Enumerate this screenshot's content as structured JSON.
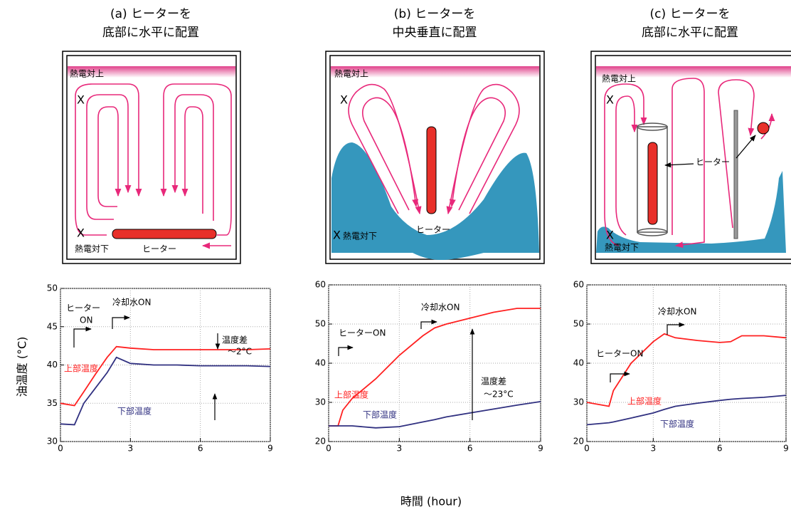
{
  "panels": [
    {
      "title": [
        "(a) ヒーターを",
        "底部に水平に配置"
      ],
      "top_label": "熱電対上",
      "bottom_label": "熱電対下",
      "heater_label": "ヒーター",
      "marker": "X"
    },
    {
      "title": [
        "(b) ヒーターを",
        "中央垂直に配置"
      ],
      "top_label": "熱電対上",
      "bottom_label": "熱電対下",
      "heater_label": "ヒーター",
      "marker": "X"
    },
    {
      "title": [
        "(c) ヒーターを",
        "底部に水平に配置"
      ],
      "top_label": "熱電対上",
      "bottom_label": "熱電対下",
      "heater_label": "ヒーター",
      "marker": "X"
    }
  ],
  "y_label": "油温度 (°C)",
  "x_label": "時間 (hour)",
  "chart_data": [
    {
      "type": "line",
      "x": [
        0,
        0.6,
        1,
        1.5,
        2,
        2.4,
        3,
        4,
        5,
        6,
        7,
        8,
        9
      ],
      "xlim": [
        0,
        9
      ],
      "xticks": [
        0,
        3,
        6,
        9
      ],
      "ylim": [
        30,
        50
      ],
      "yticks": [
        30,
        35,
        40,
        45,
        50
      ],
      "grid": true,
      "series": [
        {
          "name": "上部温度",
          "color": "#ff2020",
          "values": [
            35,
            34.7,
            36.5,
            38.8,
            41,
            42.4,
            42.2,
            42,
            42,
            42,
            42,
            42,
            42.1
          ]
        },
        {
          "name": "下部温度",
          "color": "#303080",
          "values": [
            32.3,
            32.2,
            35,
            37,
            39,
            41,
            40.2,
            40,
            40,
            39.9,
            39.9,
            39.9,
            39.8
          ]
        }
      ],
      "annotations": [
        "ヒーター",
        "ON",
        "冷却水ON",
        "温度差",
        "～2°C"
      ]
    },
    {
      "type": "line",
      "x": [
        0,
        0.4,
        0.6,
        1,
        2,
        3,
        4,
        4.5,
        5,
        6,
        7,
        8,
        9
      ],
      "xlim": [
        0,
        9
      ],
      "xticks": [
        0,
        3,
        6,
        9
      ],
      "ylim": [
        20,
        60
      ],
      "yticks": [
        20,
        30,
        40,
        50,
        60
      ],
      "grid": true,
      "series": [
        {
          "name": "上部温度",
          "color": "#ff2020",
          "values": [
            24,
            24,
            28,
            31,
            36,
            42,
            47,
            49,
            50,
            51.5,
            53,
            54,
            54
          ]
        },
        {
          "name": "下部温度",
          "color": "#303080",
          "values": [
            24,
            24,
            24,
            24,
            23.5,
            23.8,
            25,
            25.6,
            26.3,
            27.3,
            28.3,
            29.3,
            30.2
          ]
        }
      ],
      "annotations": [
        "ヒーターON",
        "冷却水ON",
        "温度差",
        "～23°C"
      ]
    },
    {
      "type": "line",
      "x": [
        0,
        1,
        1.2,
        2,
        3,
        3.5,
        4,
        5,
        6,
        6.5,
        7,
        8,
        9
      ],
      "xlim": [
        0,
        9
      ],
      "xticks": [
        0,
        3,
        6,
        9
      ],
      "ylim": [
        20,
        60
      ],
      "yticks": [
        20,
        30,
        40,
        50,
        60
      ],
      "grid": true,
      "series": [
        {
          "name": "上部温度",
          "color": "#ff2020",
          "values": [
            30,
            29,
            33,
            40,
            45.5,
            47.5,
            46.5,
            45.8,
            45.3,
            45.5,
            47,
            47,
            46.5
          ]
        },
        {
          "name": "下部温度",
          "color": "#303080",
          "values": [
            24.3,
            24.8,
            25,
            26,
            27.3,
            28.2,
            29,
            29.8,
            30.5,
            30.8,
            31,
            31.3,
            31.8
          ]
        }
      ],
      "annotations": [
        "冷却水ON",
        "ヒーターON"
      ]
    }
  ]
}
